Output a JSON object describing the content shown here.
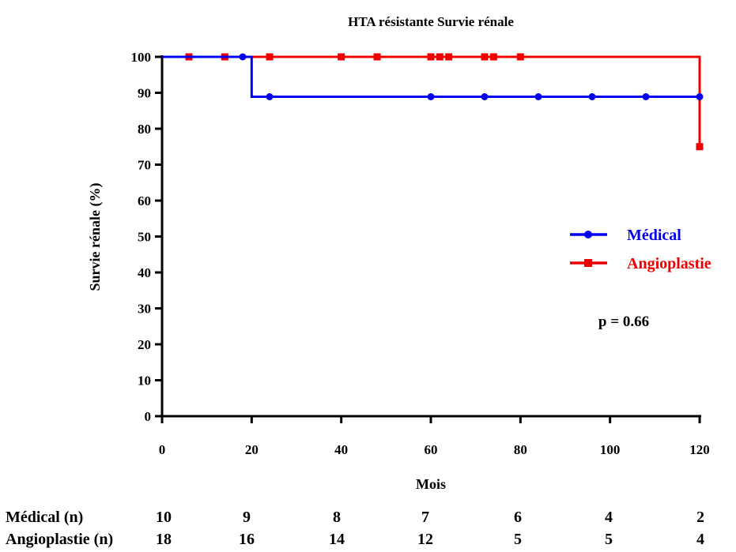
{
  "chart_data": {
    "type": "line",
    "step": true,
    "title": "HTA résistante  Survie rénale",
    "xlabel": "Mois",
    "ylabel": "Survie rénale (%)",
    "xlim": [
      0,
      120
    ],
    "ylim": [
      0,
      100
    ],
    "xticks": [
      0,
      20,
      40,
      60,
      80,
      100,
      120
    ],
    "yticks": [
      0,
      10,
      20,
      30,
      40,
      50,
      60,
      70,
      80,
      90,
      100
    ],
    "grid": false,
    "legend_position": "right",
    "series": [
      {
        "name": "Médical",
        "color": "#0000ee",
        "marker": "circle",
        "steps": [
          [
            0,
            100
          ],
          [
            20,
            88.9
          ],
          [
            120,
            88.9
          ]
        ],
        "censored_x": [
          18,
          24,
          60,
          72,
          84,
          96,
          108,
          120
        ],
        "censored_y": [
          100,
          88.9,
          88.9,
          88.9,
          88.9,
          88.9,
          88.9,
          88.9
        ]
      },
      {
        "name": "Angioplastie",
        "color": "#ee0000",
        "marker": "square",
        "steps": [
          [
            0,
            100
          ],
          [
            120,
            100
          ],
          [
            120,
            75
          ]
        ],
        "censored_x": [
          6,
          14,
          24,
          40,
          48,
          60,
          62,
          64,
          72,
          74,
          80,
          120
        ],
        "censored_y": [
          100,
          100,
          100,
          100,
          100,
          100,
          100,
          100,
          100,
          100,
          100,
          75
        ]
      }
    ],
    "annotation": "p = 0.66"
  },
  "risk_table": {
    "rows": [
      {
        "label": "Médical (n)",
        "values": [
          "10",
          "9",
          "8",
          "7",
          "6",
          "4",
          "2"
        ]
      },
      {
        "label": "Angioplastie (n)",
        "values": [
          "18",
          "16",
          "14",
          "12",
          "5",
          "5",
          "4"
        ]
      }
    ]
  }
}
